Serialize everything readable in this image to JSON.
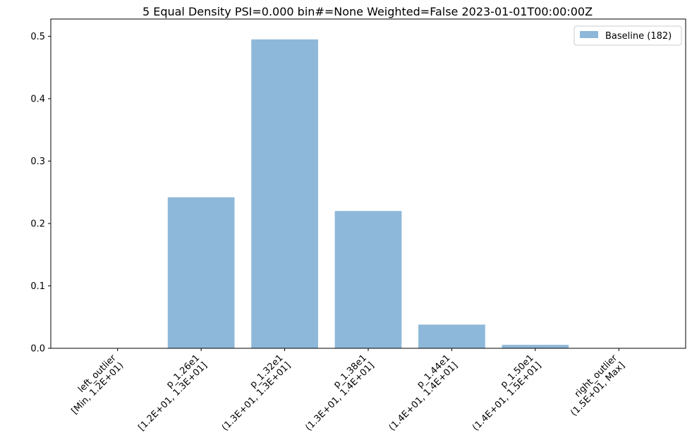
{
  "chart_data": {
    "type": "bar",
    "title": "5 Equal Density PSI=0.000 bin#=None Weighted=False 2023-01-01T00:00:00Z",
    "xlabel": "",
    "ylabel": "",
    "ylim": [
      0,
      0.5276
    ],
    "yticks": [
      0.0,
      0.1,
      0.2,
      0.3,
      0.4,
      0.5
    ],
    "ytick_labels": [
      "0.0",
      "0.1",
      "0.2",
      "0.3",
      "0.4",
      "0.5"
    ],
    "categories": [
      [
        "left_outlier",
        "[Min, 1.2E+01)"
      ],
      [
        "p_1.26e1",
        "[1.2E+01, 1.3E+01]"
      ],
      [
        "p_1.32e1",
        "(1.3E+01, 1.3E+01]"
      ],
      [
        "p_1.38e1",
        "(1.3E+01, 1.4E+01]"
      ],
      [
        "p_1.44e1",
        "(1.4E+01, 1.4E+01]"
      ],
      [
        "p_1.50e1",
        "(1.4E+01, 1.5E+01]"
      ],
      [
        "right_outlier",
        "(1.5E+01, Max]"
      ]
    ],
    "series": [
      {
        "name": "Baseline (182)",
        "color": "#8eb8d9",
        "values": [
          0.0,
          0.242,
          0.495,
          0.22,
          0.038,
          0.0055,
          0.0
        ]
      }
    ],
    "grid": false,
    "legend": "top-right",
    "xtick_rotation": 45
  }
}
